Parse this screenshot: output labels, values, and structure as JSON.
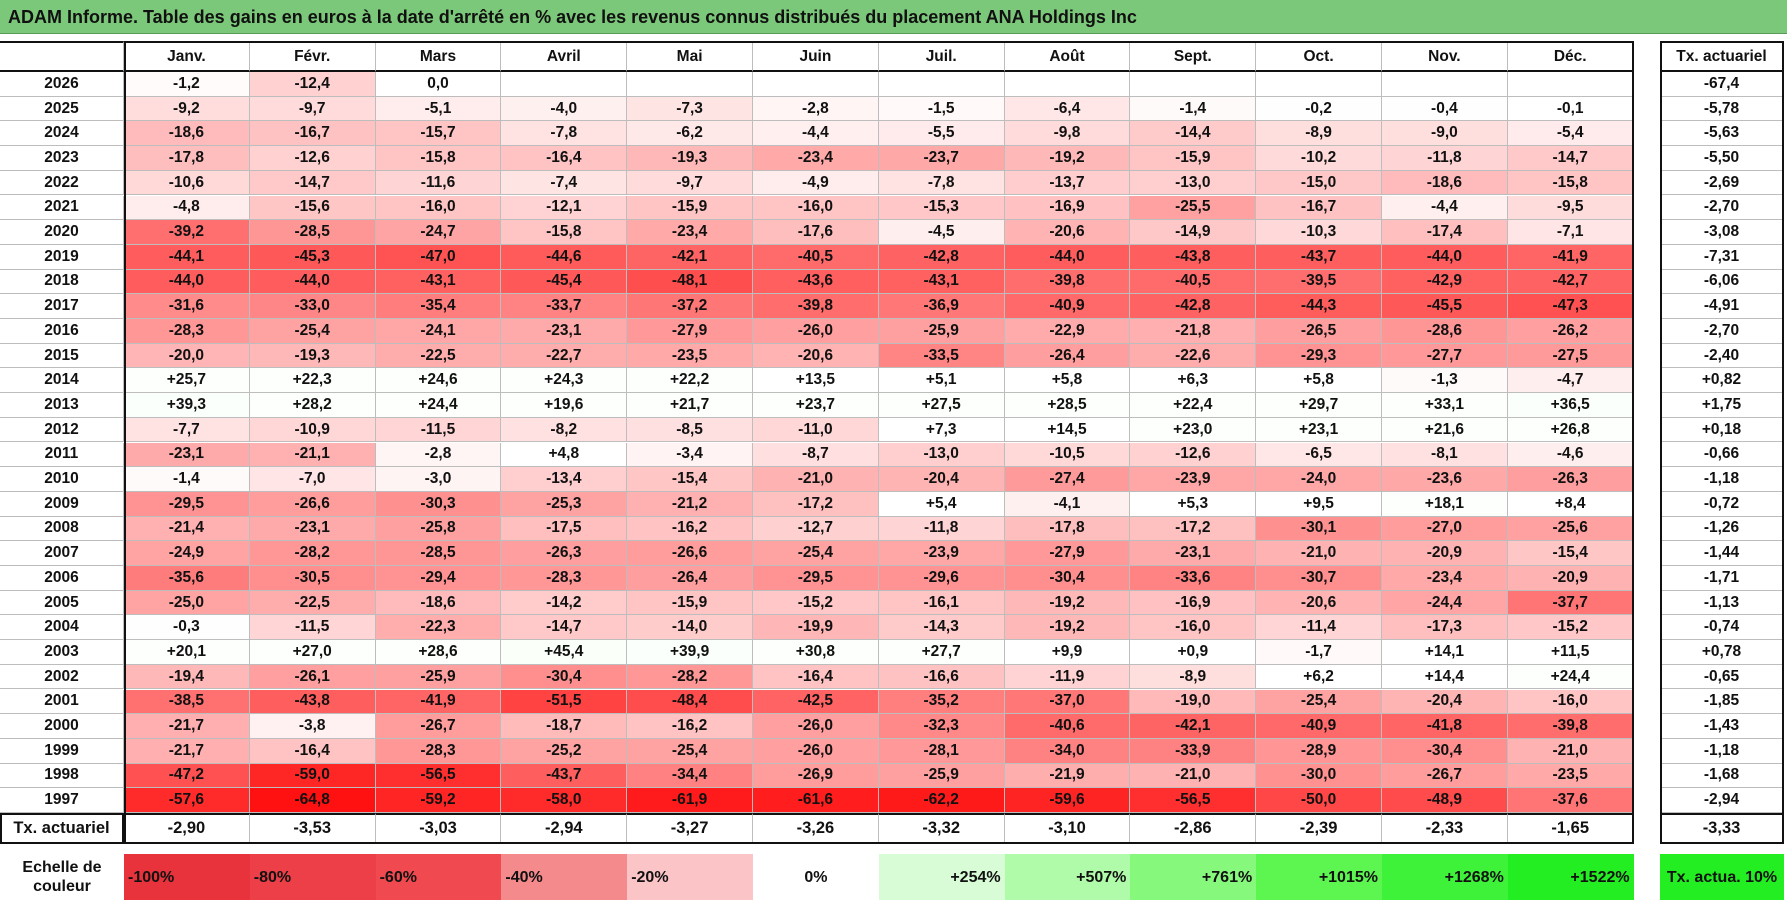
{
  "title": "ADAM Informe. Table des gains en euros à la date d'arrêté en % avec les revenus connus distribués du placement ANA Holdings Inc",
  "months": [
    "Janv.",
    "Févr.",
    "Mars",
    "Avril",
    "Mai",
    "Juin",
    "Juil.",
    "Août",
    "Sept.",
    "Oct.",
    "Nov.",
    "Déc."
  ],
  "total_header": "Tx. actuariel",
  "rows": [
    {
      "year": "2026",
      "values": [
        "-1,2",
        "-12,4",
        "0,0"
      ],
      "total": "-67,4"
    },
    {
      "year": "2025",
      "values": [
        "-9,2",
        "-9,7",
        "-5,1",
        "-4,0",
        "-7,3",
        "-2,8",
        "-1,5",
        "-6,4",
        "-1,4",
        "-0,2",
        "-0,4",
        "-0,1"
      ],
      "total": "-5,78"
    },
    {
      "year": "2024",
      "values": [
        "-18,6",
        "-16,7",
        "-15,7",
        "-7,8",
        "-6,2",
        "-4,4",
        "-5,5",
        "-9,8",
        "-14,4",
        "-8,9",
        "-9,0",
        "-5,4"
      ],
      "total": "-5,63"
    },
    {
      "year": "2023",
      "values": [
        "-17,8",
        "-12,6",
        "-15,8",
        "-16,4",
        "-19,3",
        "-23,4",
        "-23,7",
        "-19,2",
        "-15,9",
        "-10,2",
        "-11,8",
        "-14,7"
      ],
      "total": "-5,50"
    },
    {
      "year": "2022",
      "values": [
        "-10,6",
        "-14,7",
        "-11,6",
        "-7,4",
        "-9,7",
        "-4,9",
        "-7,8",
        "-13,7",
        "-13,0",
        "-15,0",
        "-18,6",
        "-15,8"
      ],
      "total": "-2,69"
    },
    {
      "year": "2021",
      "values": [
        "-4,8",
        "-15,6",
        "-16,0",
        "-12,1",
        "-15,9",
        "-16,0",
        "-15,3",
        "-16,9",
        "-25,5",
        "-16,7",
        "-4,4",
        "-9,5"
      ],
      "total": "-2,70"
    },
    {
      "year": "2020",
      "values": [
        "-39,2",
        "-28,5",
        "-24,7",
        "-15,8",
        "-23,4",
        "-17,6",
        "-4,5",
        "-20,6",
        "-14,9",
        "-10,3",
        "-17,4",
        "-7,1"
      ],
      "total": "-3,08"
    },
    {
      "year": "2019",
      "values": [
        "-44,1",
        "-45,3",
        "-47,0",
        "-44,6",
        "-42,1",
        "-40,5",
        "-42,8",
        "-44,0",
        "-43,8",
        "-43,7",
        "-44,0",
        "-41,9"
      ],
      "total": "-7,31"
    },
    {
      "year": "2018",
      "values": [
        "-44,0",
        "-44,0",
        "-43,1",
        "-45,4",
        "-48,1",
        "-43,6",
        "-43,1",
        "-39,8",
        "-40,5",
        "-39,5",
        "-42,9",
        "-42,7"
      ],
      "total": "-6,06"
    },
    {
      "year": "2017",
      "values": [
        "-31,6",
        "-33,0",
        "-35,4",
        "-33,7",
        "-37,2",
        "-39,8",
        "-36,9",
        "-40,9",
        "-42,8",
        "-44,3",
        "-45,5",
        "-47,3"
      ],
      "total": "-4,91"
    },
    {
      "year": "2016",
      "values": [
        "-28,3",
        "-25,4",
        "-24,1",
        "-23,1",
        "-27,9",
        "-26,0",
        "-25,9",
        "-22,9",
        "-21,8",
        "-26,5",
        "-28,6",
        "-26,2"
      ],
      "total": "-2,70"
    },
    {
      "year": "2015",
      "values": [
        "-20,0",
        "-19,3",
        "-22,5",
        "-22,7",
        "-23,5",
        "-20,6",
        "-33,5",
        "-26,4",
        "-22,6",
        "-29,3",
        "-27,7",
        "-27,5"
      ],
      "total": "-2,40"
    },
    {
      "year": "2014",
      "values": [
        "+25,7",
        "+22,3",
        "+24,6",
        "+24,3",
        "+22,2",
        "+13,5",
        "+5,1",
        "+5,8",
        "+6,3",
        "+5,8",
        "-1,3",
        "-4,7"
      ],
      "total": "+0,82"
    },
    {
      "year": "2013",
      "values": [
        "+39,3",
        "+28,2",
        "+24,4",
        "+19,6",
        "+21,7",
        "+23,7",
        "+27,5",
        "+28,5",
        "+22,4",
        "+29,7",
        "+33,1",
        "+36,5"
      ],
      "total": "+1,75"
    },
    {
      "year": "2012",
      "values": [
        "-7,7",
        "-10,9",
        "-11,5",
        "-8,2",
        "-8,5",
        "-11,0",
        "+7,3",
        "+14,5",
        "+23,0",
        "+23,1",
        "+21,6",
        "+26,8"
      ],
      "total": "+0,18"
    },
    {
      "year": "2011",
      "values": [
        "-23,1",
        "-21,1",
        "-2,8",
        "+4,8",
        "-3,4",
        "-8,7",
        "-13,0",
        "-10,5",
        "-12,6",
        "-6,5",
        "-8,1",
        "-4,6"
      ],
      "total": "-0,66"
    },
    {
      "year": "2010",
      "values": [
        "-1,4",
        "-7,0",
        "-3,0",
        "-13,4",
        "-15,4",
        "-21,0",
        "-20,4",
        "-27,4",
        "-23,9",
        "-24,0",
        "-23,6",
        "-26,3"
      ],
      "total": "-1,18"
    },
    {
      "year": "2009",
      "values": [
        "-29,5",
        "-26,6",
        "-30,3",
        "-25,3",
        "-21,2",
        "-17,2",
        "+5,4",
        "-4,1",
        "+5,3",
        "+9,5",
        "+18,1",
        "+8,4"
      ],
      "total": "-0,72"
    },
    {
      "year": "2008",
      "values": [
        "-21,4",
        "-23,1",
        "-25,8",
        "-17,5",
        "-16,2",
        "-12,7",
        "-11,8",
        "-17,8",
        "-17,2",
        "-30,1",
        "-27,0",
        "-25,6"
      ],
      "total": "-1,26"
    },
    {
      "year": "2007",
      "values": [
        "-24,9",
        "-28,2",
        "-28,5",
        "-26,3",
        "-26,6",
        "-25,4",
        "-23,9",
        "-27,9",
        "-23,1",
        "-21,0",
        "-20,9",
        "-15,4"
      ],
      "total": "-1,44"
    },
    {
      "year": "2006",
      "values": [
        "-35,6",
        "-30,5",
        "-29,4",
        "-28,3",
        "-26,4",
        "-29,5",
        "-29,6",
        "-30,4",
        "-33,6",
        "-30,7",
        "-23,4",
        "-20,9"
      ],
      "total": "-1,71"
    },
    {
      "year": "2005",
      "values": [
        "-25,0",
        "-22,5",
        "-18,6",
        "-14,2",
        "-15,9",
        "-15,2",
        "-16,1",
        "-19,2",
        "-16,9",
        "-20,6",
        "-24,4",
        "-37,7"
      ],
      "total": "-1,13"
    },
    {
      "year": "2004",
      "values": [
        "-0,3",
        "-11,5",
        "-22,3",
        "-14,7",
        "-14,0",
        "-19,9",
        "-14,3",
        "-19,2",
        "-16,0",
        "-11,4",
        "-17,3",
        "-15,2"
      ],
      "total": "-0,74"
    },
    {
      "year": "2003",
      "values": [
        "+20,1",
        "+27,0",
        "+28,6",
        "+45,4",
        "+39,9",
        "+30,8",
        "+27,7",
        "+9,9",
        "+0,9",
        "-1,7",
        "+14,1",
        "+11,5"
      ],
      "total": "+0,78"
    },
    {
      "year": "2002",
      "values": [
        "-19,4",
        "-26,1",
        "-25,9",
        "-30,4",
        "-28,2",
        "-16,4",
        "-16,6",
        "-11,9",
        "-8,9",
        "+6,2",
        "+14,4",
        "+24,4"
      ],
      "total": "-0,65"
    },
    {
      "year": "2001",
      "values": [
        "-38,5",
        "-43,8",
        "-41,9",
        "-51,5",
        "-48,4",
        "-42,5",
        "-35,2",
        "-37,0",
        "-19,0",
        "-25,4",
        "-20,4",
        "-16,0"
      ],
      "total": "-1,85"
    },
    {
      "year": "2000",
      "values": [
        "-21,7",
        "-3,8",
        "-26,7",
        "-18,7",
        "-16,2",
        "-26,0",
        "-32,3",
        "-40,6",
        "-42,1",
        "-40,9",
        "-41,8",
        "-39,8"
      ],
      "total": "-1,43"
    },
    {
      "year": "1999",
      "values": [
        "-21,7",
        "-16,4",
        "-28,3",
        "-25,2",
        "-25,4",
        "-26,0",
        "-28,1",
        "-34,0",
        "-33,9",
        "-28,9",
        "-30,4",
        "-21,0"
      ],
      "total": "-1,18"
    },
    {
      "year": "1998",
      "values": [
        "-47,2",
        "-59,0",
        "-56,5",
        "-43,7",
        "-34,4",
        "-26,9",
        "-25,9",
        "-21,9",
        "-21,0",
        "-30,0",
        "-26,7",
        "-23,5"
      ],
      "total": "-1,68"
    },
    {
      "year": "1997",
      "values": [
        "-57,6",
        "-64,8",
        "-59,2",
        "-58,0",
        "-61,9",
        "-61,6",
        "-62,2",
        "-59,6",
        "-56,5",
        "-50,0",
        "-48,9",
        "-37,6"
      ],
      "total": "-2,94"
    }
  ],
  "summary": {
    "label": "Tx. actuariel",
    "values": [
      "-2,90",
      "-3,53",
      "-3,03",
      "-2,94",
      "-3,27",
      "-3,26",
      "-3,32",
      "-3,10",
      "-2,86",
      "-2,39",
      "-2,33",
      "-1,65"
    ],
    "total": "-3,33"
  },
  "legend": {
    "label": "Echelle de couleur",
    "items": [
      {
        "label": "-100%",
        "color": "#e8323c"
      },
      {
        "label": "-80%",
        "color": "#ec3f47"
      },
      {
        "label": "-60%",
        "color": "#f04a50"
      },
      {
        "label": "-40%",
        "color": "#f58a8c"
      },
      {
        "label": "-20%",
        "color": "#fbc4c6"
      },
      {
        "label": "0%",
        "color": "#ffffff"
      },
      {
        "label": "+254%",
        "color": "#d8fcd6"
      },
      {
        "label": "+507%",
        "color": "#b0fba9"
      },
      {
        "label": "+761%",
        "color": "#86f97d"
      },
      {
        "label": "+1015%",
        "color": "#5df550"
      },
      {
        "label": "+1268%",
        "color": "#3ef23a"
      },
      {
        "label": "+1522%",
        "color": "#22ee22"
      }
    ],
    "total": {
      "label": "Tx. actua. 10%",
      "color": "#22ee22"
    }
  }
}
